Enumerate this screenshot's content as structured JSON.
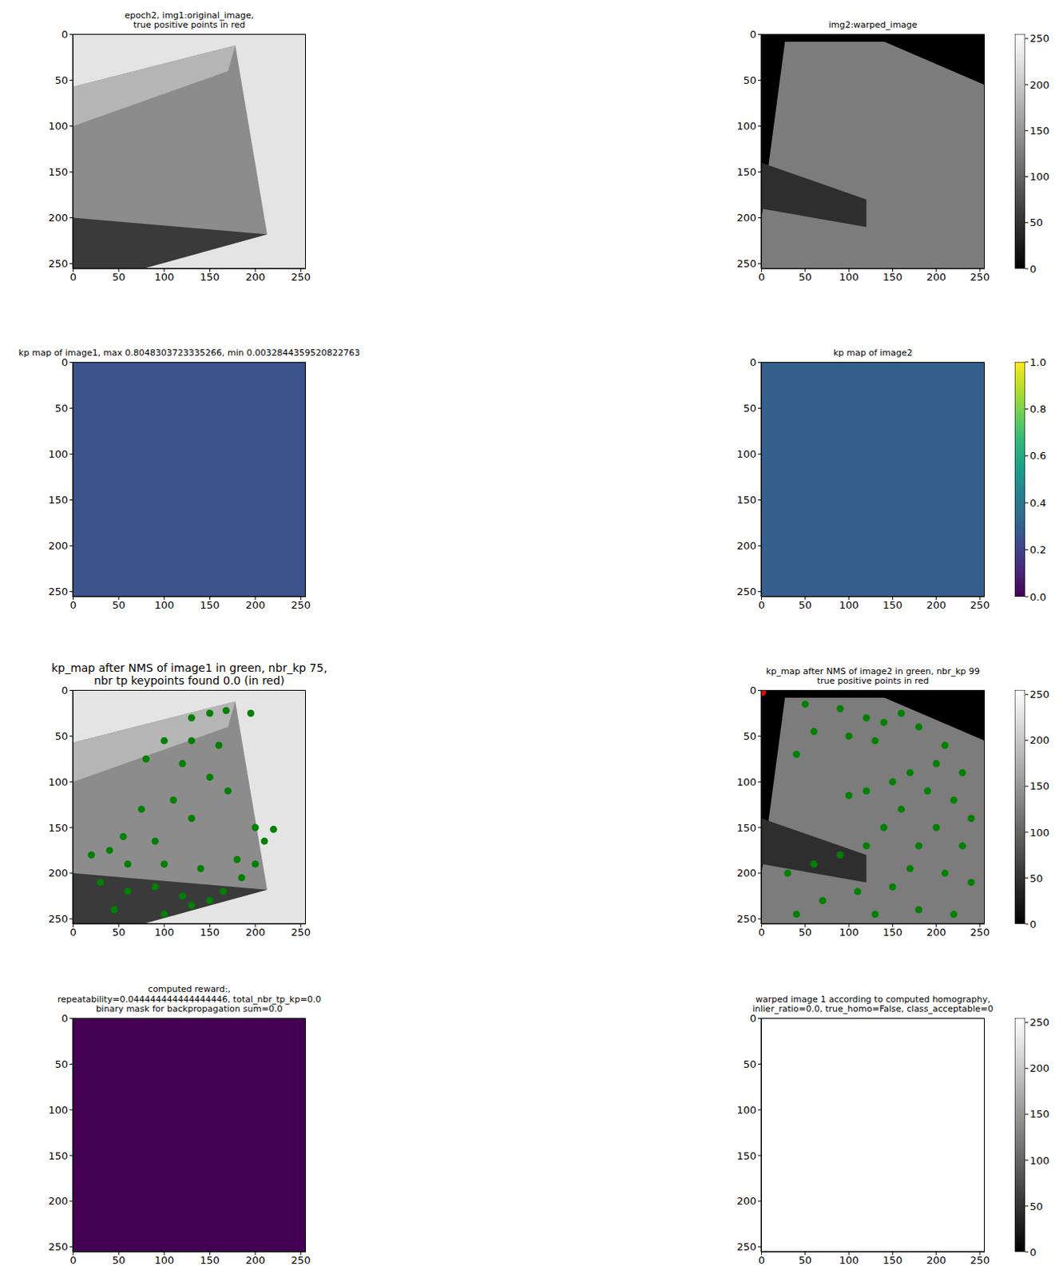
{
  "chart_data": [
    {
      "type": "image",
      "title": "epoch2, img1:original_image,\ntrue positive points in red",
      "color": "#e4e4e4",
      "xlim": [
        -0.5,
        255.5
      ],
      "ylim": [
        255.5,
        -0.5
      ],
      "xticks": [
        0,
        50,
        100,
        150,
        200,
        250
      ],
      "yticks": [
        0,
        50,
        100,
        150,
        200,
        250
      ]
    },
    {
      "type": "image",
      "title": "img2:warped_image",
      "color": "#7c7c7c",
      "xlim": [
        -0.5,
        255.5
      ],
      "ylim": [
        255.5,
        -0.5
      ],
      "xticks": [
        0,
        50,
        100,
        150,
        200,
        250
      ],
      "yticks": [
        0,
        50,
        100,
        150,
        200,
        250
      ],
      "colorbar": {
        "range": [
          0,
          255
        ],
        "ticks": [
          0,
          50,
          100,
          150,
          200,
          250
        ],
        "colors": [
          "#000000",
          "#ffffff"
        ]
      }
    },
    {
      "type": "image",
      "title": "kp map of image1, max 0.8048303723335266, min 0.0032844359520822763",
      "color": "#3b528b",
      "xlim": [
        -0.5,
        255.5
      ],
      "ylim": [
        255.5,
        -0.5
      ],
      "xticks": [
        0,
        50,
        100,
        150,
        200,
        250
      ],
      "yticks": [
        0,
        50,
        100,
        150,
        200,
        250
      ]
    },
    {
      "type": "image",
      "title": "kp map of image2",
      "color": "#355f8d",
      "xlim": [
        -0.5,
        255.5
      ],
      "ylim": [
        255.5,
        -0.5
      ],
      "xticks": [
        0,
        50,
        100,
        150,
        200,
        250
      ],
      "yticks": [
        0,
        50,
        100,
        150,
        200,
        250
      ],
      "colorbar": {
        "range": [
          0,
          1
        ],
        "ticks": [
          {
            "value": 0,
            "label": "0.0"
          },
          {
            "value": 0.2,
            "label": "0.2"
          },
          {
            "value": 0.4,
            "label": "0.4"
          },
          {
            "value": 0.6,
            "label": "0.6"
          },
          {
            "value": 0.8,
            "label": "0.8"
          },
          {
            "value": 1,
            "label": "1.0"
          }
        ],
        "colors": [
          "#440154",
          "#482878",
          "#3e4989",
          "#31688e",
          "#26828e",
          "#1f9e89",
          "#35b779",
          "#6ece58",
          "#b5de2b",
          "#fde725"
        ]
      }
    },
    {
      "type": "scatter",
      "title": "kp_map after NMS of image1 in green, nbr_kp 75,\nnbr tp keypoints found 0.0 (in red)",
      "color": "#e4e4e4",
      "xlim": [
        -0.5,
        255.5
      ],
      "ylim": [
        255.5,
        -0.5
      ],
      "xticks": [
        0,
        50,
        100,
        150,
        200,
        250
      ],
      "yticks": [
        0,
        50,
        100,
        150,
        200,
        250
      ],
      "series": [
        {
          "color": "#008000",
          "marker": "circle",
          "x": [
            195,
            150,
            130,
            168,
            100,
            130,
            160,
            80,
            120,
            150,
            170,
            110,
            75,
            130,
            200,
            220,
            210,
            40,
            20,
            60,
            100,
            140,
            180,
            30,
            60,
            90,
            120,
            150,
            45,
            100,
            130,
            165,
            185,
            200,
            55,
            90
          ],
          "values": [
            25,
            25,
            30,
            22,
            55,
            55,
            60,
            75,
            80,
            95,
            110,
            120,
            130,
            140,
            150,
            152,
            165,
            175,
            180,
            190,
            190,
            195,
            185,
            210,
            220,
            215,
            225,
            230,
            240,
            245,
            235,
            220,
            205,
            190,
            160,
            165
          ]
        }
      ]
    },
    {
      "type": "scatter",
      "title": "kp_map after NMS of image2 in green, nbr_kp 99\ntrue positive points in red",
      "color": "#7c7c7c",
      "xlim": [
        -0.5,
        255.5
      ],
      "ylim": [
        255.5,
        -0.5
      ],
      "xticks": [
        0,
        50,
        100,
        150,
        200,
        250
      ],
      "yticks": [
        0,
        50,
        100,
        150,
        200,
        250
      ],
      "colorbar": {
        "range": [
          0,
          255
        ],
        "ticks": [
          0,
          50,
          100,
          150,
          200,
          250
        ],
        "colors": [
          "#000000",
          "#ffffff"
        ]
      },
      "series": [
        {
          "color": "#008000",
          "marker": "circle",
          "x": [
            50,
            90,
            120,
            140,
            160,
            100,
            130,
            180,
            210,
            230,
            200,
            170,
            150,
            120,
            100,
            60,
            40,
            190,
            220,
            240,
            160,
            140,
            200,
            230,
            180,
            120,
            90,
            60,
            30,
            170,
            210,
            240,
            150,
            110,
            70,
            40,
            130,
            180,
            220
          ],
          "values": [
            15,
            20,
            30,
            35,
            25,
            50,
            55,
            40,
            60,
            90,
            80,
            90,
            100,
            110,
            115,
            45,
            70,
            110,
            120,
            140,
            130,
            150,
            150,
            170,
            170,
            170,
            180,
            190,
            200,
            195,
            200,
            210,
            215,
            220,
            230,
            245,
            245,
            240,
            245
          ]
        },
        {
          "color": "#ff0000",
          "marker": "circle",
          "x": [
            1
          ],
          "values": [
            2
          ]
        }
      ]
    },
    {
      "type": "image",
      "title": "computed reward:,\nrepeatability=0.044444444444444446, total_nbr_tp_kp=0.0\nbinary mask for backpropagation sum=0.0",
      "color": "#440154",
      "xlim": [
        -0.5,
        255.5
      ],
      "ylim": [
        255.5,
        -0.5
      ],
      "xticks": [
        0,
        50,
        100,
        150,
        200,
        250
      ],
      "yticks": [
        0,
        50,
        100,
        150,
        200,
        250
      ]
    },
    {
      "type": "image",
      "title": "warped image 1 according to computed homography,\ninlier_ratio=0.0, true_homo=False, class_acceptable=0",
      "color": "#ffffff",
      "xlim": [
        -0.5,
        255.5
      ],
      "ylim": [
        255.5,
        -0.5
      ],
      "xticks": [
        0,
        50,
        100,
        150,
        200,
        250
      ],
      "yticks": [
        0,
        50,
        100,
        150,
        200,
        250
      ],
      "colorbar": {
        "range": [
          0,
          255
        ],
        "ticks": [
          0,
          50,
          100,
          150,
          200,
          250
        ],
        "colors": [
          "#000000",
          "#ffffff"
        ]
      }
    }
  ]
}
